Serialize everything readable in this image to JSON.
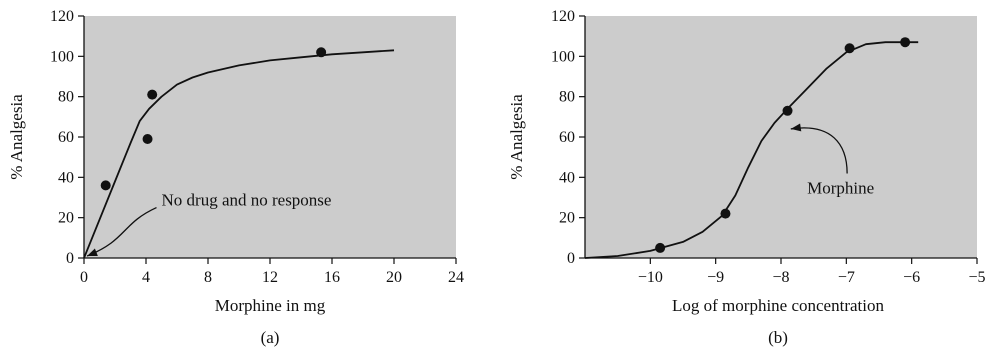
{
  "colors": {
    "plot_background": "#cccccc",
    "curve": "#111111",
    "points": "#111111",
    "axes": "#111111"
  },
  "chart_data": [
    {
      "type": "scatter",
      "panel_label": "(a)",
      "xlabel": "Morphine in mg",
      "ylabel": "% Analgesia",
      "xlim": [
        0,
        24
      ],
      "ylim": [
        0,
        120
      ],
      "x_ticks": [
        0,
        4,
        8,
        12,
        16,
        20,
        24
      ],
      "y_ticks": [
        0,
        20,
        40,
        60,
        80,
        100,
        120
      ],
      "grid": false,
      "points": [
        {
          "x": 1.4,
          "y": 36
        },
        {
          "x": 4.1,
          "y": 59
        },
        {
          "x": 4.4,
          "y": 81
        },
        {
          "x": 15.3,
          "y": 102
        }
      ],
      "curve": [
        {
          "x": 0,
          "y": 0
        },
        {
          "x": 1,
          "y": 19
        },
        {
          "x": 2,
          "y": 38
        },
        {
          "x": 3,
          "y": 57
        },
        {
          "x": 3.6,
          "y": 68
        },
        {
          "x": 4.2,
          "y": 74
        },
        {
          "x": 5,
          "y": 80
        },
        {
          "x": 6,
          "y": 86
        },
        {
          "x": 7,
          "y": 89.5
        },
        {
          "x": 8,
          "y": 92
        },
        {
          "x": 10,
          "y": 95.5
        },
        {
          "x": 12,
          "y": 98
        },
        {
          "x": 14,
          "y": 99.5
        },
        {
          "x": 16,
          "y": 101
        },
        {
          "x": 18,
          "y": 102
        },
        {
          "x": 20,
          "y": 103
        }
      ],
      "annotations": [
        {
          "text": "No drug and no response",
          "x": 5,
          "y": 26,
          "arrow_to": {
            "x": 0.2,
            "y": 1
          }
        }
      ]
    },
    {
      "type": "scatter",
      "panel_label": "(b)",
      "xlabel": "Log of morphine concentration",
      "ylabel": "% Analgesia",
      "xlim": [
        -11,
        -5
      ],
      "ylim": [
        0,
        120
      ],
      "x_ticks": [
        -10,
        -9,
        -8,
        -7,
        -6,
        -5
      ],
      "x_tick_labels": [
        "−10",
        "−9",
        "−8",
        "−7",
        "−6",
        "−5"
      ],
      "y_ticks": [
        0,
        20,
        40,
        60,
        80,
        100,
        120
      ],
      "grid": false,
      "points": [
        {
          "x": -9.85,
          "y": 5
        },
        {
          "x": -8.85,
          "y": 22
        },
        {
          "x": -7.9,
          "y": 73
        },
        {
          "x": -6.95,
          "y": 104
        },
        {
          "x": -6.1,
          "y": 107
        }
      ],
      "curve": [
        {
          "x": -11,
          "y": 0
        },
        {
          "x": -10.5,
          "y": 1
        },
        {
          "x": -10,
          "y": 3.5
        },
        {
          "x": -9.5,
          "y": 8
        },
        {
          "x": -9.2,
          "y": 13
        },
        {
          "x": -8.9,
          "y": 21
        },
        {
          "x": -8.7,
          "y": 31
        },
        {
          "x": -8.5,
          "y": 45
        },
        {
          "x": -8.3,
          "y": 58
        },
        {
          "x": -8.1,
          "y": 67
        },
        {
          "x": -7.9,
          "y": 74
        },
        {
          "x": -7.6,
          "y": 84
        },
        {
          "x": -7.3,
          "y": 94
        },
        {
          "x": -7.0,
          "y": 102
        },
        {
          "x": -6.7,
          "y": 106
        },
        {
          "x": -6.4,
          "y": 107
        },
        {
          "x": -5.9,
          "y": 107
        }
      ],
      "annotations": [
        {
          "text": "Morphine",
          "x": -7.6,
          "y": 32,
          "arrow_to": {
            "x": -7.85,
            "y": 64
          }
        }
      ]
    }
  ]
}
